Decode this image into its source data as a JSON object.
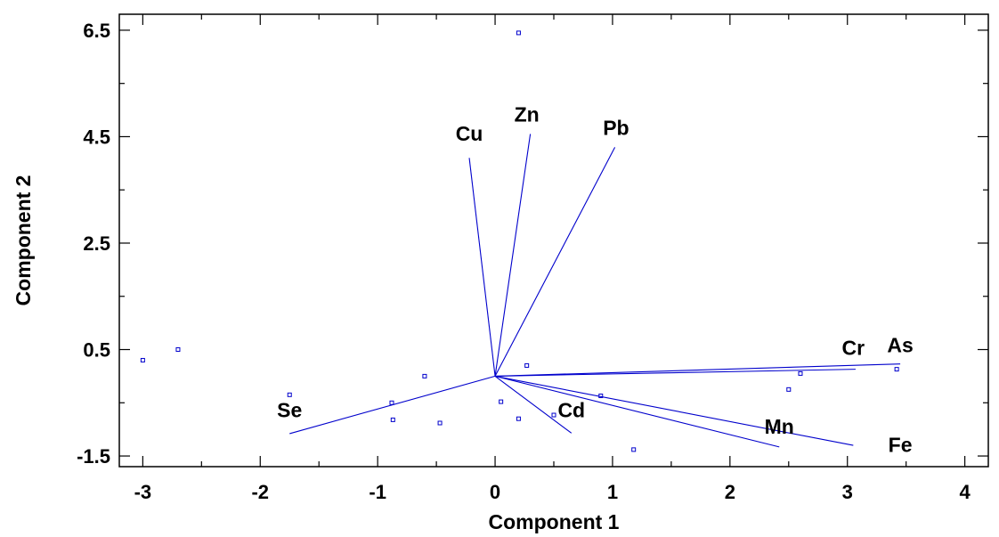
{
  "chart_data": {
    "type": "scatter",
    "subtype": "biplot",
    "title": "",
    "xlabel": "Component 1",
    "ylabel": "Component 2",
    "xlim": [
      -3.2,
      4.2
    ],
    "ylim": [
      -1.7,
      6.8
    ],
    "x_ticks": [
      -3,
      -2,
      -1,
      0,
      1,
      2,
      3,
      4
    ],
    "y_ticks": [
      -1.5,
      0.5,
      2.5,
      4.5,
      6.5
    ],
    "x_tick_labels": [
      "-3",
      "-2",
      "-1",
      "0",
      "1",
      "2",
      "3",
      "4"
    ],
    "y_tick_labels": [
      "-1.5",
      "0.5",
      "2.5",
      "4.5",
      "6.5"
    ],
    "grid": false,
    "colors": {
      "series": "#0000cc",
      "axes": "#000000"
    },
    "points": [
      {
        "x": 0.2,
        "y": 6.45
      },
      {
        "x": -3.0,
        "y": 0.3
      },
      {
        "x": -2.7,
        "y": 0.5
      },
      {
        "x": -1.75,
        "y": -0.35
      },
      {
        "x": -0.6,
        "y": 0.0
      },
      {
        "x": -0.88,
        "y": -0.5
      },
      {
        "x": -0.87,
        "y": -0.82
      },
      {
        "x": -0.47,
        "y": -0.88
      },
      {
        "x": 0.05,
        "y": -0.48
      },
      {
        "x": 0.2,
        "y": -0.8
      },
      {
        "x": 0.27,
        "y": 0.2
      },
      {
        "x": 0.5,
        "y": -0.73
      },
      {
        "x": 0.9,
        "y": -0.37
      },
      {
        "x": 1.18,
        "y": -1.38
      },
      {
        "x": 2.5,
        "y": -0.25
      },
      {
        "x": 2.6,
        "y": 0.05
      },
      {
        "x": 3.42,
        "y": 0.13
      }
    ],
    "vectors": [
      {
        "name": "Cu",
        "x": -0.22,
        "y": 4.1,
        "label_x": -0.22,
        "label_y": 4.42
      },
      {
        "name": "Zn",
        "x": 0.3,
        "y": 4.55,
        "label_x": 0.27,
        "label_y": 4.78
      },
      {
        "name": "Pb",
        "x": 1.02,
        "y": 4.3,
        "label_x": 1.03,
        "label_y": 4.53
      },
      {
        "name": "Cr",
        "x": 3.07,
        "y": 0.13,
        "label_x": 3.05,
        "label_y": 0.4
      },
      {
        "name": "As",
        "x": 3.45,
        "y": 0.23,
        "label_x": 3.45,
        "label_y": 0.45
      },
      {
        "name": "Fe",
        "x": 3.05,
        "y": -1.3,
        "label_x": 3.45,
        "label_y": -1.42
      },
      {
        "name": "Mn",
        "x": 2.42,
        "y": -1.33,
        "label_x": 2.42,
        "label_y": -1.08
      },
      {
        "name": "Cd",
        "x": 0.65,
        "y": -1.07,
        "label_x": 0.65,
        "label_y": -0.77
      },
      {
        "name": "Se",
        "x": -1.75,
        "y": -1.08,
        "label_x": -1.75,
        "label_y": -0.77
      }
    ]
  }
}
